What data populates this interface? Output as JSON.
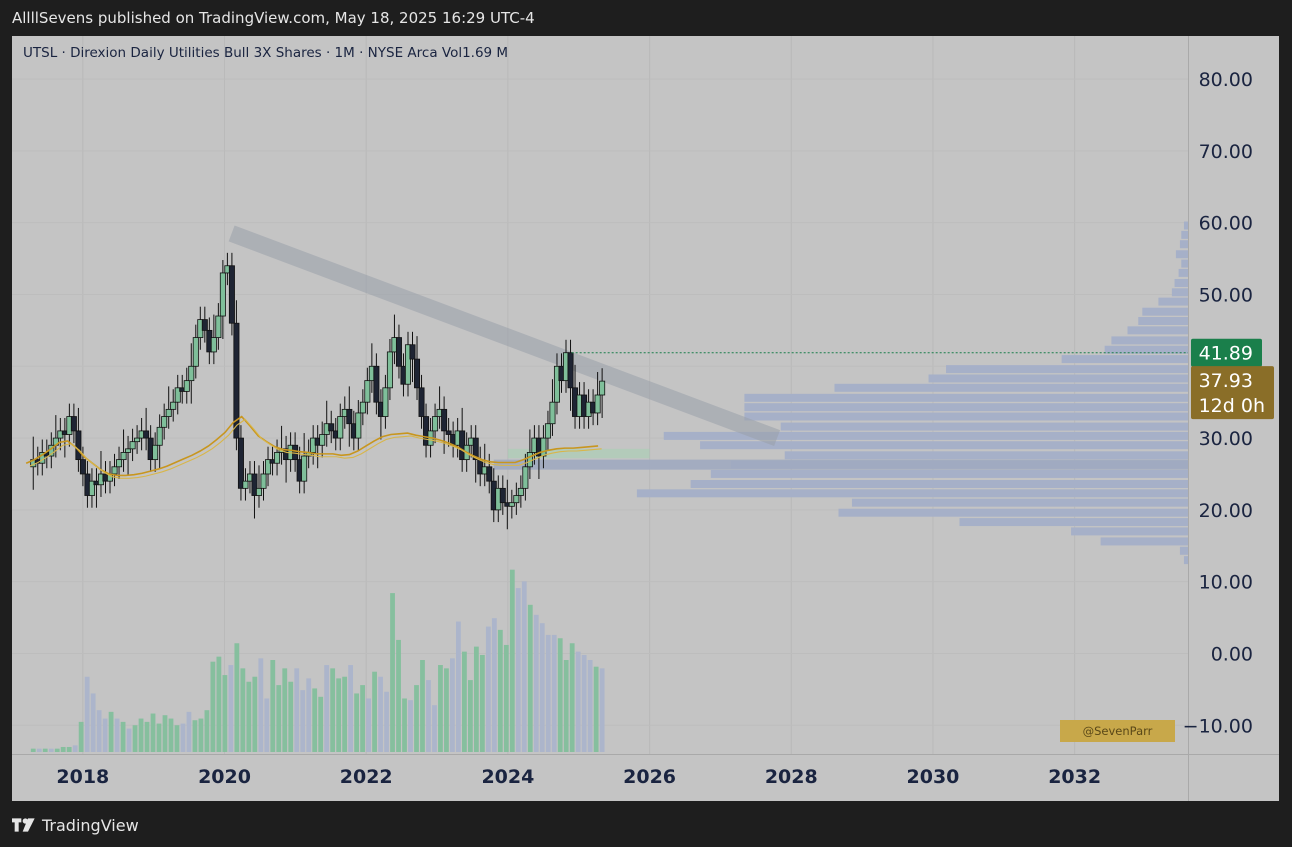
{
  "header": {
    "publisher_line": "AllllSevens published on TradingView.com, May 18, 2025 16:29 UTC-4"
  },
  "legend": {
    "text": "UTSL · Direxion Daily Utilities Bull 3X Shares · 1M · NYSE Arca  Vol1.69 M"
  },
  "footer": {
    "brand": "TradingView"
  },
  "watermark": {
    "handle": "@SevenParr"
  },
  "colors": {
    "up": "#7fbf9a",
    "down": "#aab4cc",
    "ma": "#c8961e",
    "last_price_bg": "#1a7f4b",
    "current_bg": "#8a6e28",
    "profile": "#a6b0c8"
  },
  "chart_data": {
    "type": "candlestick",
    "interval": "1M",
    "xlim": [
      2017.0,
      2033.6
    ],
    "ylim": [
      -14.0,
      86.0
    ],
    "price_ticks": [
      80,
      70,
      60,
      50,
      40,
      30,
      20,
      10,
      0,
      -10
    ],
    "price_tick_labels": [
      "80.00",
      "70.00",
      "60.00",
      "50.00",
      "",
      "30.00",
      "20.00",
      "10.00",
      "0.00",
      "−10.00"
    ],
    "time_ticks": [
      2018,
      2020,
      2022,
      2024,
      2026,
      2028,
      2030,
      2032
    ],
    "time_tick_labels": [
      "2018",
      "2020",
      "2022",
      "2024",
      "2026",
      "2028",
      "2030",
      "2032"
    ],
    "last_price": {
      "value": 41.89,
      "label": "41.89"
    },
    "current_price": {
      "value": 37.93,
      "label": "37.93",
      "countdown": "12d 0h"
    },
    "closes": [
      27.0,
      26.5,
      28.0,
      27.5,
      29.0,
      30.0,
      31.0,
      30.5,
      33.0,
      31.0,
      27.0,
      25.0,
      22.0,
      24.0,
      23.5,
      25.0,
      24.0,
      25.0,
      26.0,
      27.0,
      28.0,
      28.5,
      29.5,
      30.0,
      31.0,
      30.0,
      27.0,
      29.0,
      31.5,
      33.0,
      34.0,
      35.0,
      37.0,
      36.5,
      38.0,
      40.0,
      44.0,
      46.5,
      45.0,
      42.0,
      44.0,
      47.0,
      53.0,
      54.0,
      46.0,
      30.0,
      23.0,
      24.0,
      25.0,
      22.0,
      23.0,
      25.0,
      27.0,
      26.5,
      28.0,
      28.5,
      27.0,
      29.0,
      27.0,
      24.0,
      27.5,
      28.0,
      30.0,
      29.0,
      30.5,
      32.0,
      31.0,
      30.0,
      33.0,
      34.0,
      32.0,
      30.0,
      33.5,
      35.0,
      38.0,
      40.0,
      35.0,
      33.0,
      37.0,
      42.0,
      44.0,
      40.0,
      37.5,
      43.0,
      41.0,
      37.0,
      33.0,
      29.0,
      31.0,
      33.0,
      34.0,
      31.0,
      30.5,
      29.0,
      31.0,
      27.0,
      29.0,
      30.0,
      27.0,
      25.0,
      26.0,
      24.0,
      20.0,
      23.0,
      21.0,
      20.5,
      21.0,
      22.0,
      23.0,
      26.0,
      28.0,
      30.0,
      27.5,
      30.0,
      32.0,
      35.0,
      40.0,
      38.0,
      41.89,
      37.0,
      33.0,
      36.0,
      33.0,
      35.0,
      33.5,
      36.0,
      37.93
    ],
    "ma_values": [
      26.5,
      27.0,
      27.7,
      28.5,
      29.4,
      29.6,
      28.7,
      27.4,
      26.5,
      25.6,
      25.0,
      24.8,
      24.8,
      24.9,
      25.1,
      25.4,
      25.7,
      26.1,
      26.6,
      27.1,
      27.6,
      28.2,
      28.9,
      29.8,
      30.8,
      32.2,
      33.0,
      31.7,
      30.3,
      29.5,
      28.8,
      28.4,
      28.3,
      28.1,
      28.0,
      27.8,
      27.8,
      27.8,
      27.6,
      27.7,
      28.2,
      28.9,
      29.6,
      30.2,
      30.5,
      30.6,
      30.7,
      30.4,
      30.2,
      30.0,
      29.7,
      29.3,
      28.8,
      28.1,
      27.5,
      27.0,
      26.7,
      26.6,
      26.6,
      26.6,
      27.0,
      27.5,
      28.0,
      28.3,
      28.5,
      28.6,
      28.6,
      28.7,
      28.8,
      28.9
    ],
    "ma_start": 2017.2,
    "ma_step": 0.117,
    "trendline": {
      "from": [
        2020.1,
        58.5
      ],
      "to": [
        2027.8,
        30.0
      ]
    },
    "demand_zone": {
      "x": [
        2024.0,
        2026.0
      ],
      "y": [
        27.2,
        28.5
      ]
    },
    "lower_zone": {
      "x": [
        2023.8,
        2033.6
      ],
      "y": [
        25.6,
        27.0
      ]
    },
    "volume_profile": [
      {
        "price": 59.5,
        "size": 0.03
      },
      {
        "price": 58.2,
        "size": 0.05
      },
      {
        "price": 56.9,
        "size": 0.06
      },
      {
        "price": 55.5,
        "size": 0.09
      },
      {
        "price": 54.2,
        "size": 0.05
      },
      {
        "price": 52.9,
        "size": 0.07
      },
      {
        "price": 51.5,
        "size": 0.1
      },
      {
        "price": 50.2,
        "size": 0.12
      },
      {
        "price": 48.9,
        "size": 0.22
      },
      {
        "price": 47.5,
        "size": 0.34
      },
      {
        "price": 46.2,
        "size": 0.37
      },
      {
        "price": 44.9,
        "size": 0.45
      },
      {
        "price": 43.5,
        "size": 0.57
      },
      {
        "price": 42.2,
        "size": 0.62
      },
      {
        "price": 40.9,
        "size": 0.94
      },
      {
        "price": 39.5,
        "size": 1.8
      },
      {
        "price": 38.2,
        "size": 1.93
      },
      {
        "price": 36.9,
        "size": 2.63
      },
      {
        "price": 35.5,
        "size": 3.3
      },
      {
        "price": 34.2,
        "size": 3.3
      },
      {
        "price": 32.9,
        "size": 3.3
      },
      {
        "price": 31.5,
        "size": 3.03
      },
      {
        "price": 30.2,
        "size": 3.9
      },
      {
        "price": 28.9,
        "size": 3.63
      },
      {
        "price": 27.5,
        "size": 3.0
      },
      {
        "price": 26.2,
        "size": 3.4
      },
      {
        "price": 24.9,
        "size": 3.55
      },
      {
        "price": 23.5,
        "size": 3.7
      },
      {
        "price": 22.2,
        "size": 4.1
      },
      {
        "price": 20.9,
        "size": 2.5
      },
      {
        "price": 19.5,
        "size": 2.6
      },
      {
        "price": 18.2,
        "size": 1.7
      },
      {
        "price": 16.9,
        "size": 0.87
      },
      {
        "price": 15.5,
        "size": 0.65
      },
      {
        "price": 14.2,
        "size": 0.06
      },
      {
        "price": 12.9,
        "size": 0.03
      }
    ],
    "volume": [
      0.2,
      0.2,
      0.2,
      0.2,
      0.2,
      0.3,
      0.3,
      0.4,
      1.8,
      4.5,
      3.5,
      2.5,
      2.0,
      2.4,
      2.0,
      1.8,
      1.4,
      1.6,
      2.0,
      1.8,
      2.3,
      1.7,
      2.2,
      2.0,
      1.6,
      1.7,
      2.4,
      1.9,
      2.0,
      2.5,
      5.4,
      5.7,
      4.6,
      5.2,
      6.5,
      5.0,
      4.2,
      4.5,
      5.6,
      3.2,
      5.5,
      4.0,
      5.0,
      4.2,
      5.0,
      3.7,
      4.4,
      3.8,
      3.3,
      5.2,
      5.0,
      4.4,
      4.5,
      5.2,
      3.5,
      4.0,
      3.2,
      4.8,
      4.5,
      3.6,
      9.5,
      6.7,
      3.2,
      3.1,
      4.0,
      5.5,
      4.3,
      2.8,
      5.2,
      5.0,
      5.6,
      7.8,
      6.0,
      4.3,
      6.3,
      5.8,
      7.5,
      8.0,
      7.3,
      6.4,
      10.9,
      9.8,
      10.2,
      8.8,
      8.2,
      7.7,
      7.0,
      7.0,
      6.8,
      5.5,
      6.5,
      6.0,
      5.8,
      5.5,
      5.1,
      5.0
    ]
  }
}
